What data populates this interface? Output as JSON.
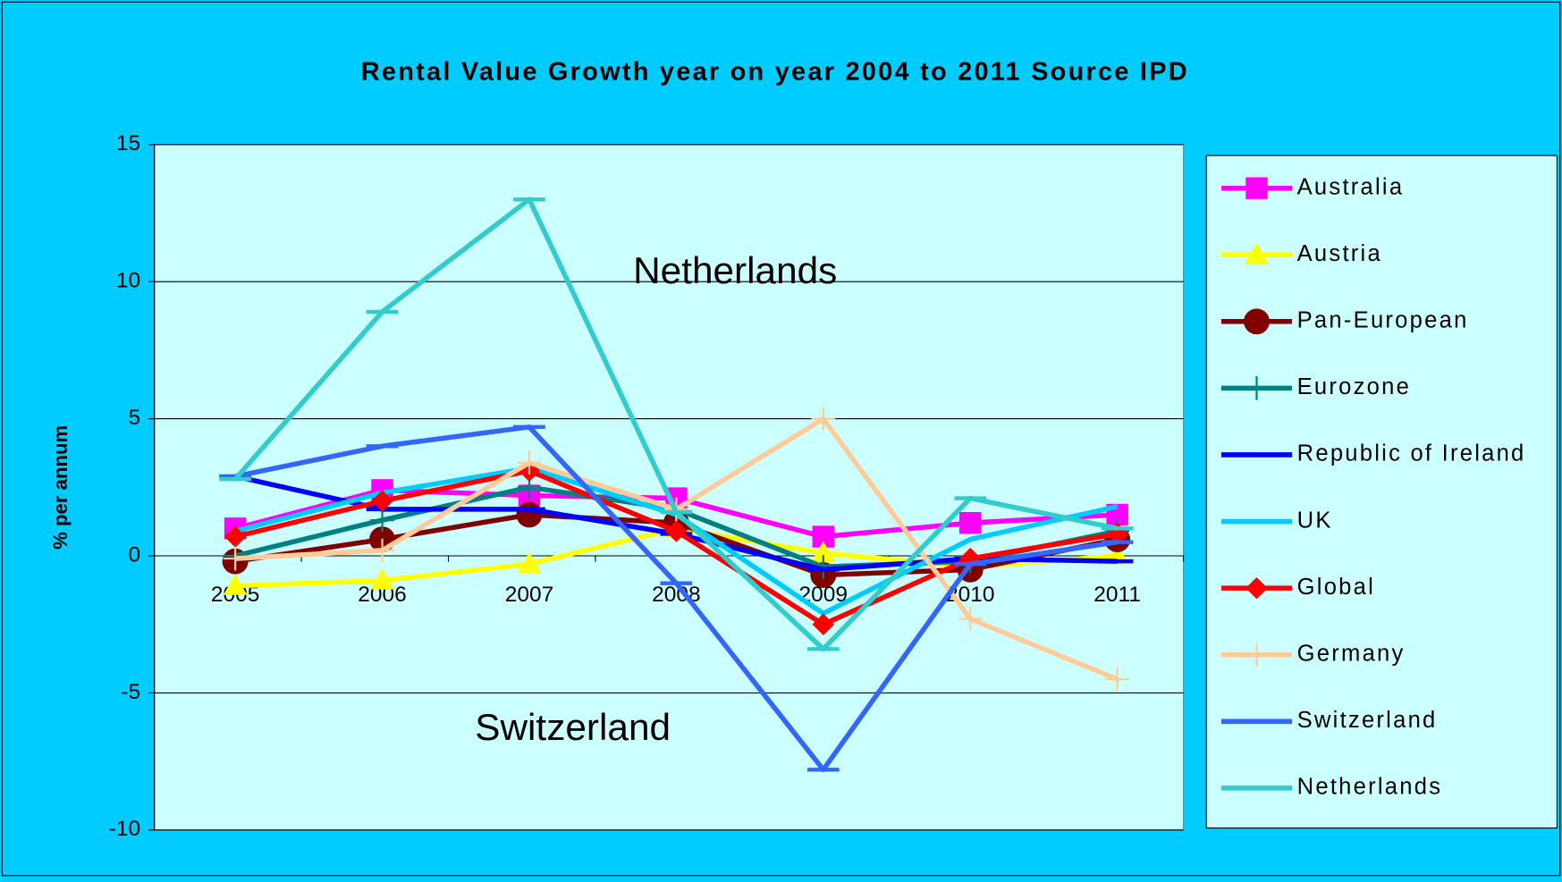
{
  "chart_data": {
    "type": "line",
    "title": "Rental Value Growth year on year 2004 to 2011 Source IPD",
    "y_label": "% per annum",
    "categories": [
      "2005",
      "2006",
      "2007",
      "2008",
      "2009",
      "2010",
      "2011"
    ],
    "ylim": [
      -10,
      15
    ],
    "yticks": [
      -10,
      -5,
      0,
      5,
      10,
      15
    ],
    "grid": true,
    "legend": "right",
    "annotations": [
      {
        "text": "Netherlands"
      },
      {
        "text": "Switzerland"
      }
    ],
    "series": [
      {
        "name": "Australia",
        "color": "#ff00ff",
        "marker": "square",
        "values": [
          1.0,
          2.4,
          2.2,
          2.1,
          0.7,
          1.2,
          1.5
        ]
      },
      {
        "name": "Austria",
        "color": "#ffff00",
        "marker": "triangle",
        "values": [
          -1.1,
          -0.9,
          -0.3,
          1.0,
          0.1,
          -0.4,
          0.0
        ]
      },
      {
        "name": "Pan-European",
        "color": "#800000",
        "marker": "circle",
        "values": [
          -0.2,
          0.6,
          1.5,
          1.2,
          -0.7,
          -0.5,
          0.6
        ]
      },
      {
        "name": "Eurozone",
        "color": "#008080",
        "marker": "plus",
        "values": [
          0.0,
          1.3,
          2.5,
          1.7,
          -0.4,
          -0.2,
          0.9
        ]
      },
      {
        "name": "Republic of Ireland",
        "color": "#0000ff",
        "marker": "dash",
        "values": [
          2.9,
          1.7,
          1.7,
          0.8,
          -0.5,
          -0.1,
          -0.2
        ]
      },
      {
        "name": "UK",
        "color": "#00ccff",
        "marker": "none",
        "values": [
          0.9,
          2.3,
          3.2,
          1.5,
          -2.1,
          0.6,
          1.8
        ]
      },
      {
        "name": "Global",
        "color": "#ff0000",
        "marker": "diamond",
        "values": [
          0.7,
          2.0,
          3.1,
          0.9,
          -2.5,
          -0.1,
          0.8
        ]
      },
      {
        "name": "Germany",
        "color": "#ffcc99",
        "marker": "plus",
        "values": [
          -0.1,
          0.2,
          3.4,
          1.7,
          5.0,
          -2.3,
          -4.5
        ]
      },
      {
        "name": "Switzerland",
        "color": "#3366ff",
        "marker": "dash",
        "values": [
          2.9,
          4.0,
          4.7,
          -1.0,
          -7.8,
          -0.3,
          0.5
        ]
      },
      {
        "name": "Netherlands",
        "color": "#33cccc",
        "marker": "dash",
        "values": [
          2.8,
          8.9,
          13.0,
          1.6,
          -3.4,
          2.1,
          1.0
        ]
      }
    ]
  }
}
